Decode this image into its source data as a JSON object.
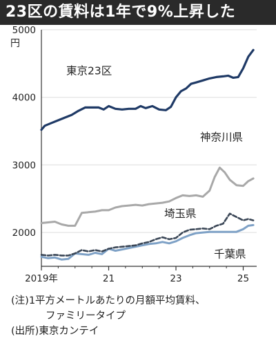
{
  "title": "23区の賃料は1年で9%上昇した",
  "notes": {
    "note1_prefix": "(注)",
    "note1_text": "1平方メートルあたりの月額平均賃料、",
    "note1_text2": "ファミリータイプ",
    "source": "(出所)東京カンテイ"
  },
  "colors": {
    "tokyo23": "#1f3a66",
    "kanagawa": "#a8a8a8",
    "saitama": "#3a4656",
    "chiba": "#7ea1c6",
    "axis": "#333333",
    "grid": "#dddddd"
  },
  "chart_data": {
    "type": "line",
    "y_unit": "円",
    "ylim": [
      1500,
      5000
    ],
    "yticks": [
      2000,
      3000,
      4000,
      5000
    ],
    "xlim": [
      2019.0,
      2025.4
    ],
    "xticks": [
      {
        "value": 2019.0,
        "label": "2019年"
      },
      {
        "value": 2021.0,
        "label": "21"
      },
      {
        "value": 2023.0,
        "label": "23"
      },
      {
        "value": 2025.0,
        "label": "25"
      }
    ],
    "series": [
      {
        "name": "東京23区",
        "color_key": "tokyo23",
        "dash": false,
        "x": [
          2019.0,
          2019.1,
          2019.3,
          2019.5,
          2019.7,
          2019.9,
          2020.1,
          2020.3,
          2020.5,
          2020.7,
          2020.85,
          2021.0,
          2021.2,
          2021.4,
          2021.6,
          2021.8,
          2021.95,
          2022.1,
          2022.3,
          2022.5,
          2022.7,
          2022.85,
          2023.0,
          2023.15,
          2023.3,
          2023.45,
          2023.6,
          2023.8,
          2024.0,
          2024.2,
          2024.4,
          2024.55,
          2024.7,
          2024.85,
          2025.0,
          2025.15,
          2025.3
        ],
        "values": [
          3520,
          3580,
          3620,
          3660,
          3700,
          3740,
          3800,
          3850,
          3850,
          3850,
          3820,
          3870,
          3830,
          3820,
          3830,
          3830,
          3870,
          3840,
          3870,
          3820,
          3810,
          3860,
          4000,
          4090,
          4130,
          4200,
          4220,
          4250,
          4280,
          4300,
          4310,
          4320,
          4290,
          4300,
          4430,
          4600,
          4700
        ]
      },
      {
        "name": "神奈川県",
        "color_key": "kanagawa",
        "dash": false,
        "x": [
          2019.0,
          2019.2,
          2019.4,
          2019.6,
          2019.8,
          2020.0,
          2020.2,
          2020.4,
          2020.6,
          2020.8,
          2021.0,
          2021.2,
          2021.4,
          2021.6,
          2021.8,
          2022.0,
          2022.2,
          2022.4,
          2022.6,
          2022.8,
          2023.0,
          2023.2,
          2023.4,
          2023.6,
          2023.8,
          2024.0,
          2024.15,
          2024.3,
          2024.45,
          2024.6,
          2024.8,
          2025.0,
          2025.15,
          2025.3
        ],
        "values": [
          2140,
          2150,
          2160,
          2120,
          2100,
          2100,
          2290,
          2300,
          2310,
          2330,
          2330,
          2370,
          2390,
          2400,
          2410,
          2400,
          2420,
          2430,
          2440,
          2460,
          2510,
          2550,
          2540,
          2550,
          2530,
          2620,
          2820,
          2960,
          2890,
          2780,
          2700,
          2690,
          2760,
          2800
        ]
      },
      {
        "name": "埼玉県",
        "color_key": "saitama",
        "dash": true,
        "x": [
          2019.0,
          2019.2,
          2019.4,
          2019.6,
          2019.8,
          2020.0,
          2020.2,
          2020.4,
          2020.6,
          2020.8,
          2021.0,
          2021.2,
          2021.4,
          2021.6,
          2021.8,
          2022.0,
          2022.2,
          2022.4,
          2022.6,
          2022.8,
          2023.0,
          2023.2,
          2023.4,
          2023.6,
          2023.8,
          2024.0,
          2024.2,
          2024.4,
          2024.6,
          2024.8,
          2025.0,
          2025.15,
          2025.3
        ],
        "values": [
          1670,
          1660,
          1670,
          1660,
          1660,
          1690,
          1740,
          1720,
          1740,
          1720,
          1760,
          1780,
          1790,
          1800,
          1810,
          1840,
          1860,
          1900,
          1930,
          1900,
          1920,
          2000,
          2040,
          2050,
          2060,
          2050,
          2100,
          2130,
          2280,
          2230,
          2180,
          2200,
          2180
        ]
      },
      {
        "name": "千葉県",
        "color_key": "chiba",
        "dash": false,
        "x": [
          2019.0,
          2019.2,
          2019.4,
          2019.6,
          2019.8,
          2020.0,
          2020.2,
          2020.4,
          2020.6,
          2020.8,
          2021.0,
          2021.2,
          2021.4,
          2021.6,
          2021.8,
          2022.0,
          2022.2,
          2022.4,
          2022.6,
          2022.8,
          2023.0,
          2023.2,
          2023.4,
          2023.6,
          2023.8,
          2024.0,
          2024.2,
          2024.4,
          2024.6,
          2024.8,
          2025.0,
          2025.15,
          2025.3
        ],
        "values": [
          1640,
          1620,
          1630,
          1600,
          1610,
          1690,
          1680,
          1670,
          1700,
          1680,
          1760,
          1730,
          1750,
          1770,
          1790,
          1810,
          1830,
          1840,
          1860,
          1840,
          1870,
          1920,
          1960,
          1990,
          2000,
          2010,
          2010,
          2010,
          2010,
          2010,
          2050,
          2100,
          2110
        ]
      }
    ]
  }
}
